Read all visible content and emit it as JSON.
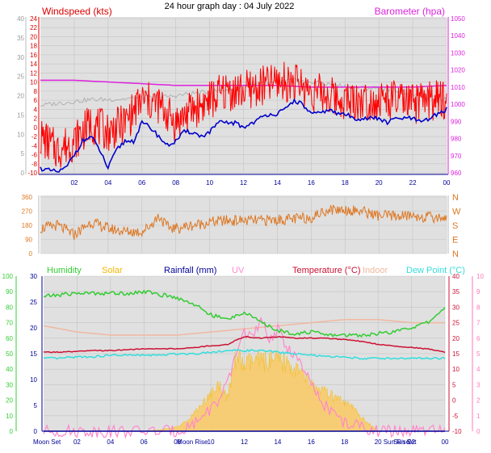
{
  "page_title": "24 hour graph day : 04 July 2022",
  "colors": {
    "wind_speed": "#dd0000",
    "wind_gust": "#ff0000",
    "wind_avg": "#0000cc",
    "barometer": "#dd22dd",
    "grey_series": "#b0b0b0",
    "direction": "#dd7722",
    "humidity": "#33cc33",
    "solar": "#f5b800",
    "rainfall": "#000099",
    "uv": "#ff88cc",
    "temperature": "#cc1133",
    "indoor": "#f0b8a0",
    "dew_point": "#33dddd",
    "plot_bg": "#e0e0e0",
    "left_axis_green": "#33cc33",
    "right_axis_pink": "#ff77bb"
  },
  "chart_data": [
    {
      "type": "line",
      "panel": "wind",
      "title": "Windspeed (kts)",
      "title_right": "Barometer (hpa)",
      "x_ticks": [
        "02",
        "04",
        "06",
        "08",
        "10",
        "12",
        "14",
        "16",
        "18",
        "20",
        "22",
        "00"
      ],
      "left_axis_outer": {
        "ticks": [
          "0",
          "5",
          "10",
          "15",
          "20",
          "25",
          "30",
          "35",
          "40"
        ],
        "range": [
          0,
          40
        ]
      },
      "left_axis_inner": {
        "ticks": [
          "-10",
          "-8",
          "-6",
          "-4",
          "-2",
          "0",
          "2",
          "4",
          "6",
          "8",
          "10",
          "12",
          "14",
          "16",
          "18",
          "20",
          "22",
          "24"
        ],
        "range": [
          -10,
          24
        ]
      },
      "right_axis": {
        "ticks": [
          "960",
          "970",
          "980",
          "990",
          "1000",
          "1010",
          "1020",
          "1030",
          "1040",
          "1050"
        ],
        "range": [
          960,
          1050
        ],
        "unit": "hpa"
      },
      "x_range": [
        0,
        24
      ],
      "series": [
        {
          "key": "grey",
          "axis": "outer",
          "x": [
            0,
            1,
            2,
            3,
            4,
            5,
            6,
            7,
            8,
            9,
            10,
            11,
            12,
            13,
            14,
            15,
            16,
            17,
            18,
            19,
            20,
            21,
            22,
            23,
            24
          ],
          "values": [
            17.5,
            18,
            18.5,
            19,
            19,
            19.2,
            19.5,
            19.6,
            20,
            20.6,
            21,
            21.6,
            22.5,
            23,
            23.5,
            24,
            23.5,
            23,
            22.5,
            22,
            22,
            21.5,
            20.5,
            19.5,
            19
          ]
        },
        {
          "key": "barometer",
          "axis": "right",
          "x": [
            0,
            2,
            4,
            6,
            8,
            10,
            12,
            14,
            16,
            18,
            20,
            22,
            24
          ],
          "values": [
            1014,
            1014,
            1013,
            1012,
            1011,
            1011,
            1011,
            1011,
            1010,
            1010,
            1010,
            1010,
            1011
          ]
        },
        {
          "key": "speed",
          "axis": "inner",
          "x": [
            0,
            1,
            2,
            3,
            4,
            5,
            6,
            7,
            8,
            9,
            10,
            11,
            12,
            13,
            14,
            15,
            16,
            17,
            18,
            19,
            20,
            21,
            22,
            23,
            24
          ],
          "values": [
            -2,
            -5,
            -3,
            1,
            -1,
            1,
            6,
            5,
            1,
            4,
            6,
            8,
            8,
            9,
            10,
            10,
            8,
            7,
            6,
            6,
            6,
            6,
            5,
            6,
            6
          ]
        },
        {
          "key": "avg",
          "axis": "inner",
          "x": [
            0,
            0.5,
            1,
            1.5,
            2,
            2.5,
            3,
            3.5,
            4,
            4.5,
            5,
            5.5,
            6,
            6.5,
            7,
            7.5,
            8,
            8.5,
            9,
            9.5,
            10,
            10.5,
            11,
            11.5,
            12,
            12.5,
            13,
            13.5,
            14,
            14.5,
            15,
            15.5,
            16,
            16.5,
            17,
            17.5,
            18,
            18.5,
            19,
            19.5,
            20,
            20.5,
            21,
            21.5,
            22,
            22.5,
            23,
            23.5,
            24
          ],
          "values": [
            -9,
            -9.5,
            -9.8,
            -9,
            -6,
            -3,
            -2,
            -5,
            -9,
            -5,
            -3,
            -3,
            1,
            0,
            -2,
            -4,
            -3,
            -1,
            -1,
            -2,
            -1,
            1,
            1,
            1,
            0,
            1,
            2,
            3,
            3,
            4,
            6,
            5,
            3,
            3,
            4,
            3,
            3,
            2,
            2,
            2,
            2,
            1,
            2,
            2,
            2,
            1,
            2,
            3,
            4
          ]
        }
      ]
    },
    {
      "type": "scatter",
      "panel": "direction",
      "left_ticks": [
        "0",
        "90",
        "180",
        "270",
        "360"
      ],
      "right_labels": [
        "N",
        "E",
        "S",
        "W",
        "N"
      ],
      "y_range": [
        0,
        360
      ],
      "x_range": [
        0,
        24
      ],
      "series": [
        {
          "key": "direction",
          "x": [
            0,
            1,
            2,
            3,
            4,
            5,
            6,
            6.5,
            7,
            7.5,
            8,
            9,
            10,
            11,
            12,
            13,
            14,
            15,
            16,
            17,
            18,
            19,
            20,
            21,
            22,
            23,
            24
          ],
          "values": [
            160,
            180,
            120,
            200,
            160,
            140,
            140,
            180,
            240,
            170,
            160,
            180,
            200,
            210,
            210,
            210,
            215,
            220,
            230,
            280,
            280,
            270,
            240,
            240,
            240,
            230,
            230
          ]
        }
      ]
    },
    {
      "type": "area",
      "panel": "climate",
      "legend": [
        "Humidity",
        "Solar",
        "Rainfall (mm)",
        "UV",
        "Temperature (°C)",
        "Indoor",
        "Dew Point (°C)"
      ],
      "x_ticks": [
        "Moon Set",
        "02",
        "04",
        "06",
        "08",
        "Moon Rise",
        "10",
        "12",
        "14",
        "16",
        "18",
        "20",
        "Sun Rise",
        "Sun Set",
        "22",
        "00"
      ],
      "left_axis_outer": {
        "ticks": [
          "0",
          "10",
          "20",
          "30",
          "40",
          "50",
          "60",
          "70",
          "80",
          "90",
          "100"
        ],
        "range": [
          0,
          100
        ]
      },
      "left_axis_inner": {
        "ticks": [
          "0",
          "5",
          "10",
          "15",
          "20",
          "25",
          "30"
        ],
        "range": [
          0,
          30
        ]
      },
      "right_axis_inner": {
        "ticks": [
          "-10",
          "-5",
          "0",
          "5",
          "10",
          "15",
          "20",
          "25",
          "30",
          "35",
          "40"
        ],
        "range": [
          -10,
          40
        ]
      },
      "right_axis_outer": {
        "ticks": [
          "0",
          "1",
          "2",
          "3",
          "4",
          "5",
          "6",
          "7",
          "8",
          "9",
          "10"
        ],
        "range": [
          0,
          10
        ]
      },
      "x_range": [
        0,
        24
      ],
      "series": [
        {
          "key": "humidity",
          "axis": "pct",
          "x": [
            0,
            1,
            2,
            3,
            4,
            5,
            6,
            7,
            8,
            9,
            10,
            11,
            12,
            13,
            14,
            15,
            16,
            17,
            18,
            19,
            20,
            21,
            22,
            23,
            24
          ],
          "values": [
            87,
            88,
            89,
            89,
            89,
            89,
            90,
            88,
            86,
            82,
            75,
            72,
            77,
            70,
            65,
            63,
            64,
            62,
            62,
            62,
            63,
            64,
            67,
            70,
            80
          ]
        },
        {
          "key": "indoor",
          "axis": "temp",
          "x": [
            0,
            2,
            4,
            6,
            8,
            10,
            12,
            14,
            16,
            18,
            20,
            22,
            24
          ],
          "values": [
            24,
            22,
            21,
            21,
            21,
            22,
            23,
            24,
            25,
            26,
            26,
            25,
            25
          ]
        },
        {
          "key": "temperature",
          "axis": "temp",
          "x": [
            0,
            1,
            2,
            3,
            4,
            5,
            6,
            7,
            8,
            9,
            10,
            11,
            12,
            13,
            14,
            15,
            16,
            17,
            18,
            19,
            20,
            21,
            22,
            23,
            24
          ],
          "values": [
            15.5,
            15.5,
            15.7,
            16,
            16,
            16.3,
            16.5,
            16.6,
            16.6,
            17,
            17.5,
            18,
            20.5,
            20,
            20.5,
            20,
            20,
            20,
            19.5,
            19,
            18,
            17.5,
            17,
            16.5,
            15.5
          ]
        },
        {
          "key": "dew_point",
          "axis": "temp",
          "x": [
            0,
            1,
            2,
            3,
            4,
            5,
            6,
            7,
            8,
            9,
            10,
            11,
            12,
            13,
            14,
            15,
            16,
            17,
            18,
            19,
            20,
            21,
            22,
            23,
            24
          ],
          "values": [
            13.5,
            13.5,
            14,
            14,
            14.5,
            14.5,
            14.5,
            14.5,
            15,
            15,
            15.5,
            16,
            16,
            16,
            15.5,
            15,
            14.5,
            14,
            14,
            13.5,
            13.5,
            13.5,
            13.5,
            13.5,
            13.5
          ]
        },
        {
          "key": "solar",
          "axis": "solar",
          "x": [
            0,
            6,
            7,
            8,
            8.5,
            9,
            9.5,
            10,
            10.5,
            11,
            11.5,
            12,
            12.5,
            13,
            13.5,
            14,
            14.5,
            15,
            15.5,
            16,
            16.5,
            17,
            17.5,
            18,
            18.5,
            19,
            19.5,
            20,
            24
          ],
          "values": [
            0,
            0,
            0.3,
            1,
            2,
            4,
            6,
            8,
            10,
            7,
            16,
            14,
            15,
            15,
            15,
            15,
            14.5,
            13.5,
            12,
            10,
            9,
            8,
            7,
            6,
            5,
            3,
            1.5,
            0,
            0
          ]
        },
        {
          "key": "uv",
          "axis": "uv",
          "x": [
            0,
            8,
            9,
            10,
            10.5,
            11,
            11.5,
            12,
            12.5,
            13,
            13.5,
            14,
            14.5,
            15,
            15.5,
            16,
            16.5,
            17,
            17.5,
            18,
            19,
            20,
            24
          ],
          "values": [
            0,
            0,
            0.5,
            1.5,
            2,
            3,
            5,
            6.5,
            6,
            7,
            6,
            6.5,
            5.5,
            5,
            4,
            3,
            2,
            1.5,
            1,
            0.5,
            0.3,
            0,
            0
          ]
        },
        {
          "key": "rainfall",
          "axis": "rain",
          "x": [
            0,
            24
          ],
          "values": [
            0,
            0
          ]
        }
      ]
    }
  ]
}
